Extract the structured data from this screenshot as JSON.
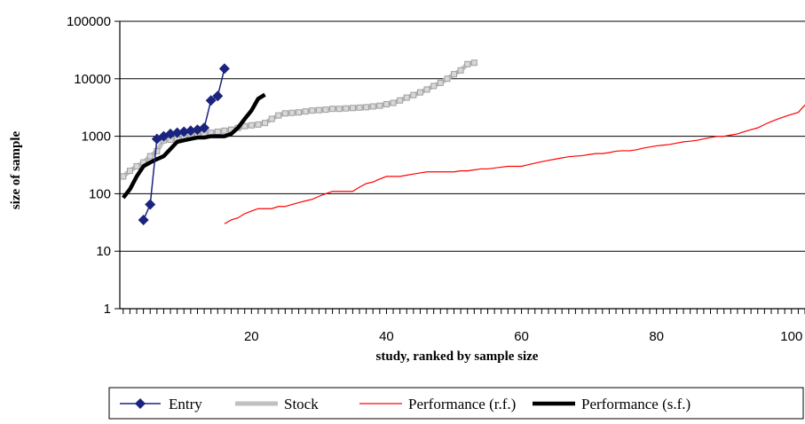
{
  "chart_data": {
    "type": "line",
    "xlabel": "study, ranked by sample size",
    "ylabel": "size of sample",
    "ylog": true,
    "xlim": [
      0.5,
      102
    ],
    "ylim": [
      1,
      100000
    ],
    "x_ticks": [
      20,
      40,
      60,
      80,
      100
    ],
    "y_ticks": [
      1,
      10,
      100,
      1000,
      10000,
      100000
    ],
    "y_tick_labels": [
      "1",
      "10",
      "100",
      "1000",
      "10000",
      "100000"
    ],
    "grid": "horizontal",
    "legend_position": "bottom",
    "series": [
      {
        "name": "Entry",
        "color": "#1a237e",
        "style": "line-diamond",
        "x": [
          4,
          5,
          6,
          7,
          8,
          9,
          10,
          11,
          12,
          13,
          14,
          15,
          16
        ],
        "y": [
          35,
          65,
          900,
          1000,
          1100,
          1150,
          1200,
          1250,
          1300,
          1400,
          4200,
          5000,
          15000
        ]
      },
      {
        "name": "Stock",
        "color": "#c0c0c0",
        "style": "thick-line-square",
        "x": [
          1,
          2,
          3,
          4,
          5,
          6,
          7,
          8,
          9,
          10,
          11,
          12,
          13,
          14,
          15,
          16,
          17,
          18,
          19,
          20,
          21,
          22,
          23,
          24,
          25,
          26,
          27,
          28,
          29,
          30,
          31,
          32,
          33,
          34,
          35,
          36,
          37,
          38,
          39,
          40,
          41,
          42,
          43,
          44,
          45,
          46,
          47,
          48,
          49,
          50,
          51,
          52,
          53
        ],
        "y": [
          200,
          250,
          300,
          350,
          450,
          550,
          850,
          870,
          900,
          950,
          1000,
          1050,
          1100,
          1150,
          1200,
          1250,
          1300,
          1400,
          1500,
          1550,
          1600,
          1700,
          2000,
          2300,
          2500,
          2550,
          2600,
          2700,
          2800,
          2850,
          2900,
          3000,
          3000,
          3050,
          3100,
          3150,
          3200,
          3300,
          3400,
          3600,
          3800,
          4200,
          4700,
          5200,
          5800,
          6500,
          7500,
          8500,
          10000,
          12000,
          14000,
          18000,
          19000
        ]
      },
      {
        "name": "Performance (r.f.)",
        "color": "#ff0000",
        "style": "thin-line",
        "x": [
          16,
          17,
          18,
          19,
          20,
          21,
          22,
          23,
          24,
          25,
          26,
          27,
          28,
          29,
          30,
          31,
          32,
          33,
          34,
          35,
          36,
          37,
          38,
          39,
          40,
          41,
          42,
          43,
          44,
          45,
          46,
          47,
          48,
          49,
          50,
          51,
          52,
          53,
          54,
          55,
          56,
          57,
          58,
          59,
          60,
          61,
          62,
          63,
          64,
          65,
          66,
          67,
          68,
          69,
          70,
          71,
          72,
          73,
          74,
          75,
          76,
          77,
          78,
          79,
          80,
          81,
          82,
          83,
          84,
          85,
          86,
          87,
          88,
          89,
          90,
          91,
          92,
          93,
          94,
          95,
          96,
          97,
          98,
          99,
          100,
          101,
          102
        ],
        "y": [
          30,
          35,
          38,
          45,
          50,
          55,
          55,
          55,
          60,
          60,
          65,
          70,
          75,
          80,
          90,
          100,
          110,
          110,
          110,
          110,
          130,
          150,
          160,
          180,
          200,
          200,
          200,
          210,
          220,
          230,
          240,
          240,
          240,
          240,
          240,
          250,
          250,
          260,
          270,
          270,
          280,
          290,
          300,
          300,
          300,
          320,
          340,
          360,
          380,
          400,
          420,
          440,
          450,
          460,
          480,
          500,
          500,
          520,
          550,
          560,
          560,
          580,
          620,
          650,
          680,
          700,
          720,
          760,
          800,
          820,
          850,
          900,
          950,
          1000,
          1000,
          1050,
          1100,
          1200,
          1300,
          1400,
          1600,
          1800,
          2000,
          2200,
          2400,
          2600,
          3500
        ]
      },
      {
        "name": "Performance (s.f.)",
        "color": "#000000",
        "style": "thick-line",
        "x": [
          1,
          2,
          3,
          4,
          5,
          6,
          7,
          8,
          9,
          10,
          11,
          12,
          13,
          14,
          15,
          16,
          17,
          18,
          19,
          20,
          21,
          22
        ],
        "y": [
          85,
          120,
          200,
          300,
          350,
          400,
          450,
          600,
          800,
          850,
          900,
          950,
          950,
          1000,
          1000,
          1000,
          1100,
          1400,
          2000,
          2800,
          4500,
          5300
        ]
      }
    ],
    "legend": [
      "Entry",
      "Stock",
      "Performance (r.f.)",
      "Performance (s.f.)"
    ]
  }
}
